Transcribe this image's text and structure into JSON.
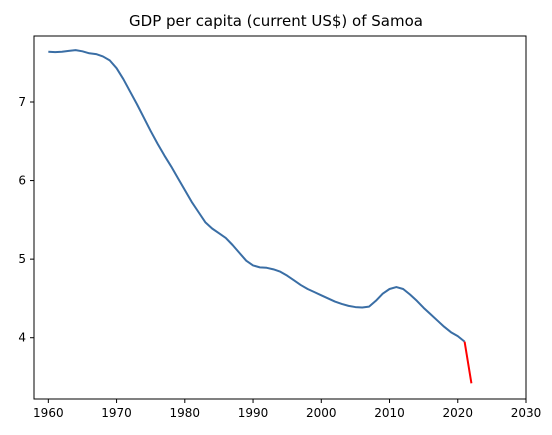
{
  "chart_data": {
    "type": "line",
    "title": "GDP per capita (current US$) of Samoa",
    "xlabel": "",
    "ylabel": "",
    "xlim": [
      1957.9,
      2030
    ],
    "ylim": [
      3.22,
      7.84
    ],
    "xticks": [
      1960,
      1970,
      1980,
      1990,
      2000,
      2010,
      2020,
      2030
    ],
    "yticks": [
      4,
      5,
      6,
      7
    ],
    "grid": false,
    "series": [
      {
        "color": "#3a6ea5",
        "x": [
          1960,
          1961,
          1962,
          1963,
          1964,
          1965,
          1966,
          1967,
          1968,
          1969,
          1970,
          1971,
          1972,
          1973,
          1974,
          1975,
          1976,
          1977,
          1978,
          1979,
          1980,
          1981,
          1982,
          1983,
          1984,
          1985,
          1986,
          1987,
          1988,
          1989,
          1990,
          1991,
          1992,
          1993,
          1994,
          1995,
          1996,
          1997,
          1998,
          1999,
          2000,
          2001,
          2002,
          2003,
          2004,
          2005,
          2006,
          2007,
          2008,
          2009,
          2010,
          2011,
          2012,
          2013,
          2014,
          2015,
          2016,
          2017,
          2018,
          2019,
          2020,
          2021
        ],
        "y": [
          7.64,
          7.635,
          7.64,
          7.65,
          7.66,
          7.645,
          7.62,
          7.61,
          7.58,
          7.53,
          7.43,
          7.29,
          7.13,
          6.97,
          6.8,
          6.63,
          6.47,
          6.32,
          6.18,
          6.03,
          5.88,
          5.73,
          5.6,
          5.47,
          5.39,
          5.33,
          5.27,
          5.18,
          5.08,
          4.98,
          4.92,
          4.895,
          4.89,
          4.87,
          4.84,
          4.79,
          4.73,
          4.67,
          4.62,
          4.58,
          4.54,
          4.5,
          4.46,
          4.43,
          4.405,
          4.39,
          4.385,
          4.395,
          4.47,
          4.56,
          4.62,
          4.645,
          4.62,
          4.55,
          4.47,
          4.38,
          4.3,
          4.22,
          4.14,
          4.07,
          4.02,
          3.95
        ]
      },
      {
        "color": "#ff0000",
        "x": [
          2021,
          2022
        ],
        "y": [
          3.95,
          3.42
        ]
      }
    ]
  }
}
